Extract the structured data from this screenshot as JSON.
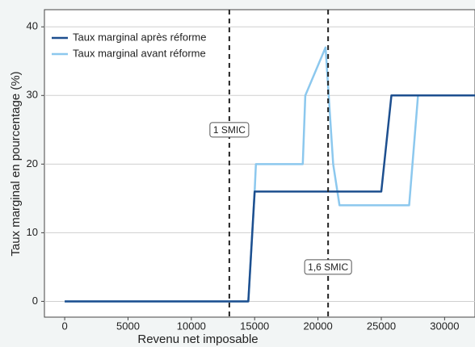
{
  "chart_data": {
    "type": "line",
    "xlabel": "Revenu net imposable",
    "ylabel": "Taux marginal en pourcentage (%)",
    "xlim": [
      -1600,
      32400
    ],
    "ylim": [
      -2.3,
      42.5
    ],
    "xticks": [
      0,
      5000,
      10000,
      15000,
      20000,
      25000,
      30000
    ],
    "yticks": [
      0,
      10,
      20,
      30,
      40
    ],
    "grid": true,
    "legend": "upper left",
    "vlines": [
      13000,
      20800
    ],
    "annotations": [
      {
        "text": "1 SMIC",
        "x": 13000,
        "y": 25
      },
      {
        "text": "1,6 SMIC",
        "x": 20800,
        "y": 5
      }
    ],
    "series": [
      {
        "name": "Taux marginal après réforme",
        "color": "#1d4f8f",
        "x": [
          0,
          14500,
          15000,
          25000,
          25800,
          32400
        ],
        "values": [
          0,
          0,
          16,
          16,
          30,
          30
        ]
      },
      {
        "name": "Taux marginal avant réforme",
        "color": "#8cc8ee",
        "x": [
          0,
          14500,
          15000,
          15100,
          18800,
          19000,
          20600,
          21200,
          21700,
          27200,
          27900,
          32400
        ],
        "values": [
          0,
          0,
          16,
          20,
          20,
          30,
          37,
          20,
          14,
          14,
          30,
          30
        ]
      }
    ]
  }
}
